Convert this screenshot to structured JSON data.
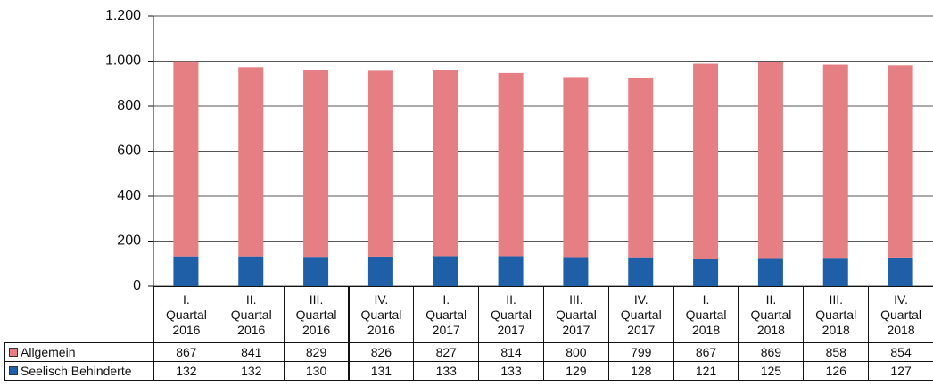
{
  "chart_data": {
    "type": "stacked_bar",
    "categories": [
      "I. Quartal 2016",
      "II. Quartal 2016",
      "III. Quartal 2016",
      "IV. Quartal 2016",
      "I. Quartal 2017",
      "II. Quartal 2017",
      "III. Quartal 2017",
      "IV. Quartal 2017",
      "I. Quartal 2018",
      "II. Quartal 2018",
      "III. Quartal 2018",
      "IV. Quartal 2018"
    ],
    "series": [
      {
        "name": "Allgemein",
        "color": "#e57f84",
        "values": [
          867,
          841,
          829,
          826,
          827,
          814,
          800,
          799,
          867,
          869,
          858,
          854
        ]
      },
      {
        "name": "Seelisch Behinderte",
        "color": "#1f5fa8",
        "values": [
          132,
          132,
          130,
          131,
          133,
          133,
          129,
          128,
          121,
          125,
          126,
          127
        ]
      }
    ],
    "stack_order": [
      1,
      0
    ],
    "ylim": [
      0,
      1200
    ],
    "yticks": [
      0,
      200,
      400,
      600,
      800,
      {
        "value": 1000,
        "label": "1.000"
      },
      {
        "value": 1200,
        "label": "1.200"
      }
    ],
    "grid": true
  }
}
